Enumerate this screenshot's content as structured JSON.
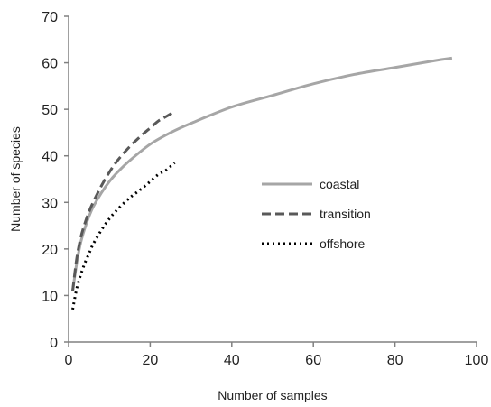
{
  "chart_data": {
    "type": "line",
    "xlabel": "Number of samples",
    "ylabel": "Number of species",
    "xlim": [
      0,
      100
    ],
    "ylim": [
      0,
      70
    ],
    "x_ticks": [
      "0",
      "20",
      "40",
      "60",
      "80",
      "100"
    ],
    "y_ticks": [
      "0",
      "10",
      "20",
      "30",
      "40",
      "50",
      "60",
      "70"
    ],
    "grid": false,
    "legend_position": "center-right",
    "series": [
      {
        "name": "coastal",
        "color": "#a6a6a6",
        "style": "solid",
        "x": [
          1,
          2,
          3,
          4,
          5,
          6,
          8,
          10,
          12,
          15,
          20,
          25,
          30,
          40,
          50,
          60,
          70,
          80,
          90,
          94
        ],
        "y": [
          11,
          17,
          21.5,
          24.5,
          27,
          29,
          32,
          34.5,
          36.5,
          39,
          42.5,
          45,
          47,
          50.5,
          53,
          55.5,
          57.5,
          59,
          60.5,
          61
        ]
      },
      {
        "name": "transition",
        "color": "#595959",
        "style": "dashed",
        "x": [
          1,
          2,
          3,
          4,
          5,
          6,
          8,
          10,
          12,
          15,
          18,
          20,
          22,
          24,
          26
        ],
        "y": [
          11,
          18,
          22.5,
          25.5,
          28,
          30,
          33.5,
          36.5,
          39,
          42,
          44.5,
          46,
          47.5,
          48.5,
          49.5
        ]
      },
      {
        "name": "offshore",
        "color": "#000000",
        "style": "dotted",
        "x": [
          1,
          2,
          3,
          4,
          5,
          6,
          8,
          10,
          12,
          15,
          18,
          20,
          22,
          24,
          26
        ],
        "y": [
          7,
          11.5,
          14.5,
          17,
          19,
          21,
          24,
          26.5,
          28.5,
          31,
          33,
          34.5,
          36,
          37,
          38.5
        ]
      }
    ]
  }
}
